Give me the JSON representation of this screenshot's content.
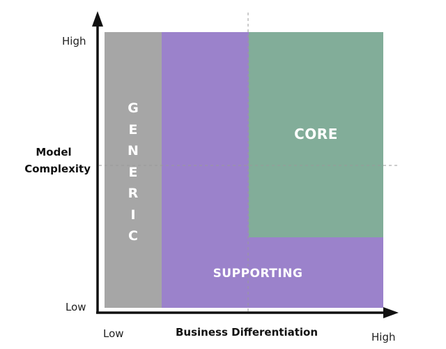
{
  "regions": {
    "generic": {
      "letters": [
        "G",
        "E",
        "N",
        "E",
        "R",
        "I",
        "C"
      ],
      "color": "#a6a6a6"
    },
    "supporting": {
      "label": "SUPPORTING",
      "color": "#9b82cb"
    },
    "core": {
      "label": "CORE",
      "color": "#82ad99"
    }
  },
  "y_axis": {
    "title_line1": "Model",
    "title_line2": "Complexity",
    "high_label": "High",
    "low_label": "Low"
  },
  "x_axis": {
    "title": "Business Differentiation",
    "low_label": "Low",
    "high_label": "High"
  },
  "colors": {
    "axis": "#111111",
    "guide": "#999999"
  }
}
